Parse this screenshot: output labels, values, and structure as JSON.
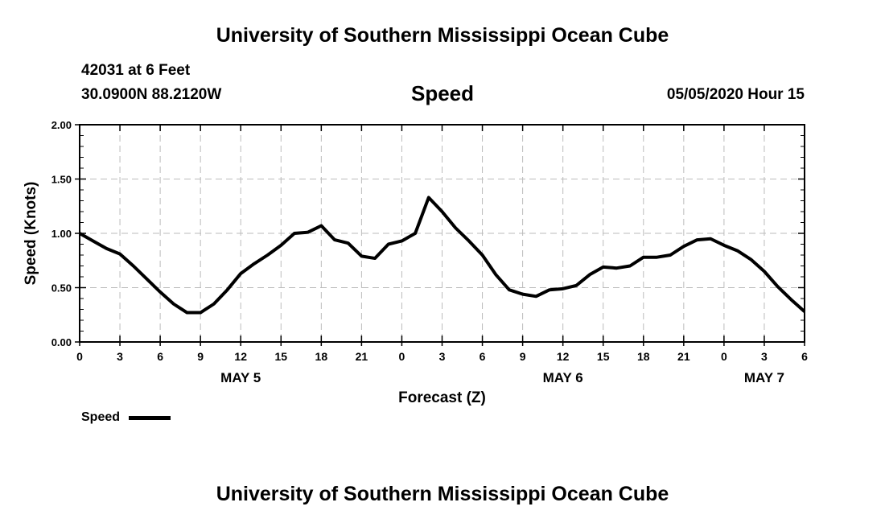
{
  "header": {
    "title": "University of Southern Mississippi Ocean Cube",
    "station": "42031 at 6 Feet",
    "coordinates": "30.0900N 88.2120W",
    "variable": "Speed",
    "datetime": "05/05/2020 Hour 15"
  },
  "footer": {
    "title": "University of Southern Mississippi Ocean Cube"
  },
  "legend": {
    "label": "Speed"
  },
  "chart_data": {
    "type": "line",
    "title": "Speed",
    "xlabel": "Forecast (Z)",
    "ylabel": "Speed (Knots)",
    "xlim": [
      0,
      54
    ],
    "ylim": [
      0,
      2
    ],
    "grid": true,
    "yticks": [
      "0.00",
      "0.50",
      "1.00",
      "1.50",
      "2.00"
    ],
    "ytick_values": [
      0,
      0.5,
      1,
      1.5,
      2
    ],
    "xtick_values": [
      0,
      3,
      6,
      9,
      12,
      15,
      18,
      21,
      24,
      27,
      30,
      33,
      36,
      39,
      42,
      45,
      48,
      51,
      54
    ],
    "xtick_labels": [
      "0",
      "3",
      "6",
      "9",
      "12",
      "15",
      "18",
      "21",
      "0",
      "3",
      "6",
      "9",
      "12",
      "15",
      "18",
      "21",
      "0",
      "3",
      "6"
    ],
    "date_labels": [
      {
        "label": "MAY 5",
        "hour": 12
      },
      {
        "label": "MAY 6",
        "hour": 36
      },
      {
        "label": "MAY 7",
        "hour": 51
      }
    ],
    "legend": "bottom-left",
    "series": [
      {
        "name": "Speed",
        "color": "#000000",
        "x": [
          0,
          1,
          2,
          3,
          4,
          5,
          6,
          7,
          8,
          9,
          10,
          11,
          12,
          13,
          14,
          15,
          16,
          17,
          18,
          19,
          20,
          21,
          22,
          23,
          24,
          25,
          26,
          27,
          28,
          29,
          30,
          31,
          32,
          33,
          34,
          35,
          36,
          37,
          38,
          39,
          40,
          41,
          42,
          43,
          44,
          45,
          46,
          47,
          48,
          49,
          50,
          51,
          52,
          53,
          54
        ],
        "values": [
          1.0,
          0.93,
          0.86,
          0.81,
          0.7,
          0.58,
          0.46,
          0.35,
          0.27,
          0.27,
          0.35,
          0.48,
          0.63,
          0.72,
          0.8,
          0.89,
          1.0,
          1.01,
          1.07,
          0.94,
          0.91,
          0.79,
          0.77,
          0.9,
          0.93,
          1.0,
          1.33,
          1.2,
          1.05,
          0.93,
          0.8,
          0.62,
          0.48,
          0.44,
          0.42,
          0.48,
          0.49,
          0.52,
          0.62,
          0.69,
          0.68,
          0.7,
          0.78,
          0.78,
          0.8,
          0.88,
          0.94,
          0.95,
          0.89,
          0.84,
          0.76,
          0.65,
          0.51,
          0.39,
          0.28
        ]
      }
    ]
  }
}
